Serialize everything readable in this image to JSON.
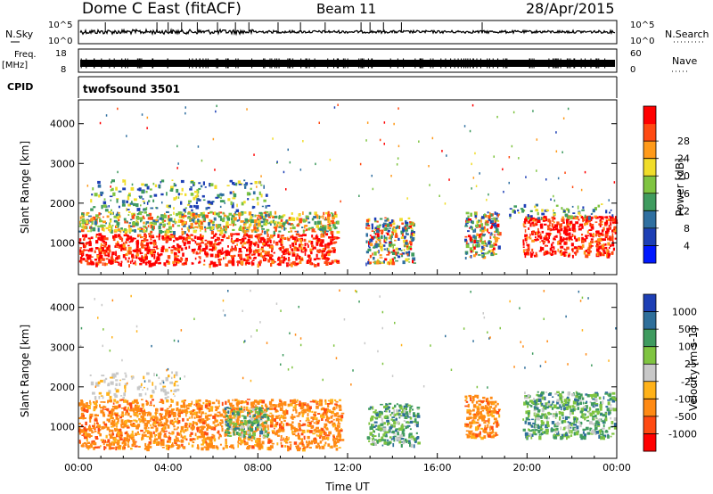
{
  "header": {
    "title": "Dome C East (fitACF)",
    "beam": "Beam 11",
    "date": "28/Apr/2015"
  },
  "aux_panels": {
    "nsky": {
      "label": "N.Sky",
      "right_label": "N.Search",
      "left_ticks": [
        "10^5",
        "10^0"
      ],
      "right_ticks": [
        "10^5",
        "10^0"
      ],
      "baseline_fraction": 0.82,
      "spike_times": [
        1.2,
        3.5,
        4.0,
        4.6,
        5.3,
        6.2,
        7.0,
        7.6,
        8.9,
        9.9,
        11.0,
        12.6,
        13.0,
        13.6,
        14.4,
        18.0
      ]
    },
    "freq": {
      "label": "Freq.",
      "unit": "[MHz]",
      "left_ticks": [
        "18",
        "8"
      ],
      "right_label": "Nave",
      "right_ticks": [
        "60",
        "0"
      ]
    },
    "cpid": {
      "label": "CPID",
      "program": "twofsound 3501"
    }
  },
  "chart_data": [
    {
      "type": "heatmap",
      "name": "power",
      "xlabel": "",
      "ylabel": "Slant Range [km]",
      "xlim": [
        0,
        24
      ],
      "ylim": [
        200,
        4600
      ],
      "yticks": [
        1000,
        2000,
        3000,
        4000
      ],
      "colorbar": {
        "label": "Power [dB]",
        "ticks": [
          "4",
          "8",
          "12",
          "16",
          "20",
          "24",
          "28"
        ],
        "colors": [
          "#0018ff",
          "#1d3fb5",
          "#2f6fa0",
          "#3f9b5f",
          "#7fc441",
          "#f0dd2a",
          "#ff9a1a",
          "#ff4a12",
          "#ff0000"
        ]
      },
      "regions": [
        {
          "t": [
            0.0,
            11.6
          ],
          "r": [
            420,
            1250
          ],
          "level": "high"
        },
        {
          "t": [
            0.0,
            11.6
          ],
          "r": [
            1250,
            1800
          ],
          "level": "mid"
        },
        {
          "t": [
            0.5,
            8.5
          ],
          "r": [
            1800,
            2600
          ],
          "level": "low"
        },
        {
          "t": [
            12.8,
            15.0
          ],
          "r": [
            450,
            1650
          ],
          "level": "mixed"
        },
        {
          "t": [
            17.2,
            18.8
          ],
          "r": [
            600,
            1800
          ],
          "level": "mixed"
        },
        {
          "t": [
            19.8,
            24.0
          ],
          "r": [
            650,
            1700
          ],
          "level": "high"
        },
        {
          "t": [
            19.0,
            24.0
          ],
          "r": [
            1600,
            2000
          ],
          "level": "low"
        }
      ]
    },
    {
      "type": "heatmap",
      "name": "velocity",
      "xlabel": "Time UT",
      "ylabel": "Slant Range [km]",
      "xlim": [
        0,
        24
      ],
      "ylim": [
        200,
        4600
      ],
      "xticks": [
        "00:00",
        "04:00",
        "08:00",
        "12:00",
        "16:00",
        "20:00",
        "00:00"
      ],
      "yticks": [
        1000,
        2000,
        3000,
        4000
      ],
      "colorbar": {
        "label": "Velocity [m s-1]",
        "ticks": [
          "1000",
          "500",
          "100",
          "25",
          "-25",
          "-100",
          "-500",
          "-1000"
        ],
        "colors": [
          "#1d3fb5",
          "#2f6f9a",
          "#3f9b5f",
          "#7fc441",
          "#c8c8c8",
          "#ffb21a",
          "#ff8a14",
          "#ff4a12",
          "#ff0000"
        ]
      },
      "regions": [
        {
          "t": [
            0.0,
            11.8
          ],
          "r": [
            420,
            1700
          ],
          "level": "negative"
        },
        {
          "t": [
            0.5,
            4.5
          ],
          "r": [
            1700,
            2400
          ],
          "level": "near-zero"
        },
        {
          "t": [
            6.5,
            8.5
          ],
          "r": [
            700,
            1500
          ],
          "level": "positive"
        },
        {
          "t": [
            12.8,
            15.2
          ],
          "r": [
            500,
            1600
          ],
          "level": "positive"
        },
        {
          "t": [
            17.2,
            18.8
          ],
          "r": [
            700,
            1800
          ],
          "level": "negative"
        },
        {
          "t": [
            19.8,
            24.0
          ],
          "r": [
            700,
            1900
          ],
          "level": "positive"
        }
      ]
    }
  ]
}
